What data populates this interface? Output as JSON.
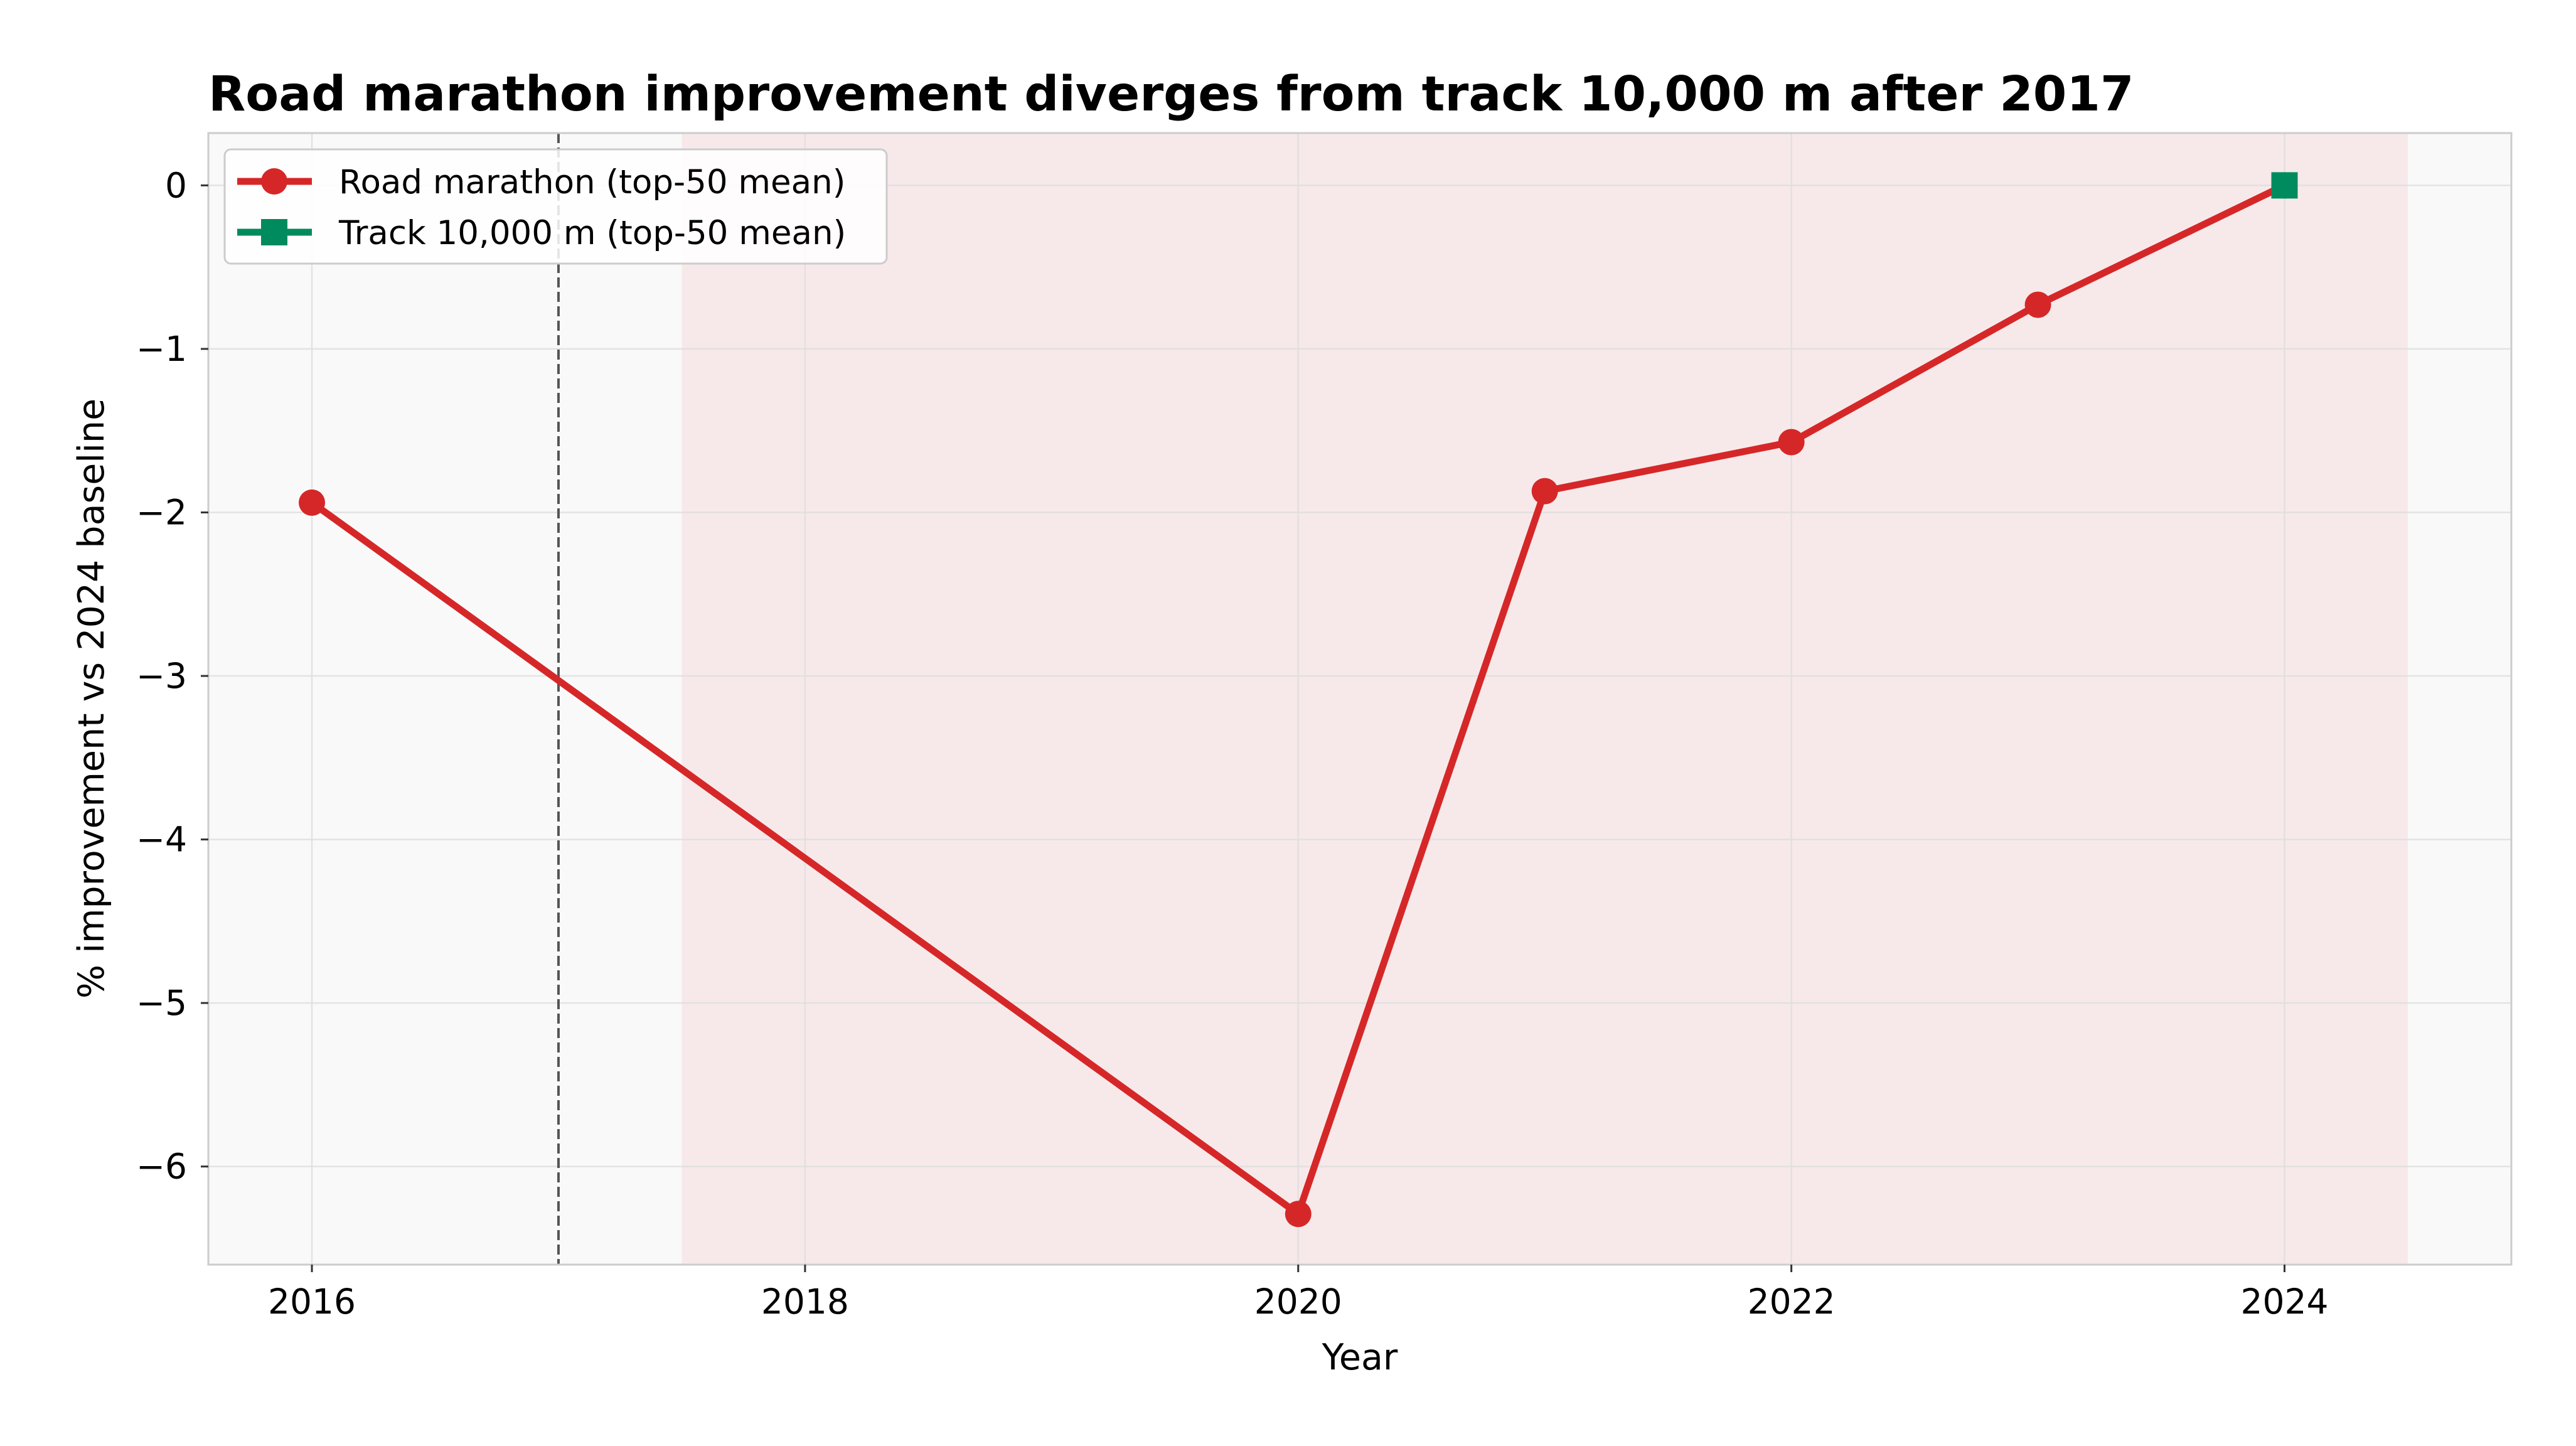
{
  "chart_data": {
    "type": "line",
    "title": "Road marathon improvement diverges from track 10,000 m after 2017",
    "xlabel": "Year",
    "ylabel": "% improvement vs 2024 baseline",
    "xlim": [
      2015.58,
      2024.92
    ],
    "ylim": [
      -6.6,
      0.32
    ],
    "x_ticks": [
      2016,
      2018,
      2020,
      2022,
      2024
    ],
    "y_ticks": [
      0,
      -1,
      -2,
      -3,
      -4,
      -5,
      -6
    ],
    "x_tick_labels": [
      "2016",
      "2018",
      "2020",
      "2022",
      "2024"
    ],
    "y_tick_labels": [
      "0",
      "−1",
      "−2",
      "−3",
      "−4",
      "−5",
      "−6"
    ],
    "grid": true,
    "legend_position": "top-left",
    "series": [
      {
        "name": "Road marathon (top-50 mean)",
        "color": "#d62728",
        "marker": "circle",
        "x": [
          2016,
          2020,
          2021,
          2022,
          2023,
          2024
        ],
        "y": [
          -1.94,
          -6.29,
          -1.87,
          -1.57,
          -0.73,
          0.0
        ]
      },
      {
        "name": "Track 10,000 m (top-50 mean)",
        "color": "#008b5e",
        "marker": "square",
        "x": [
          2024
        ],
        "y": [
          0.0
        ]
      }
    ],
    "shaded_region": {
      "x_start": 2017.5,
      "x_end": 2024.5,
      "color": "#f7e9ea"
    },
    "reference_line": {
      "x": 2017,
      "style": "dashed",
      "color": "#555555"
    },
    "plot_background": "#f9f9f9"
  }
}
